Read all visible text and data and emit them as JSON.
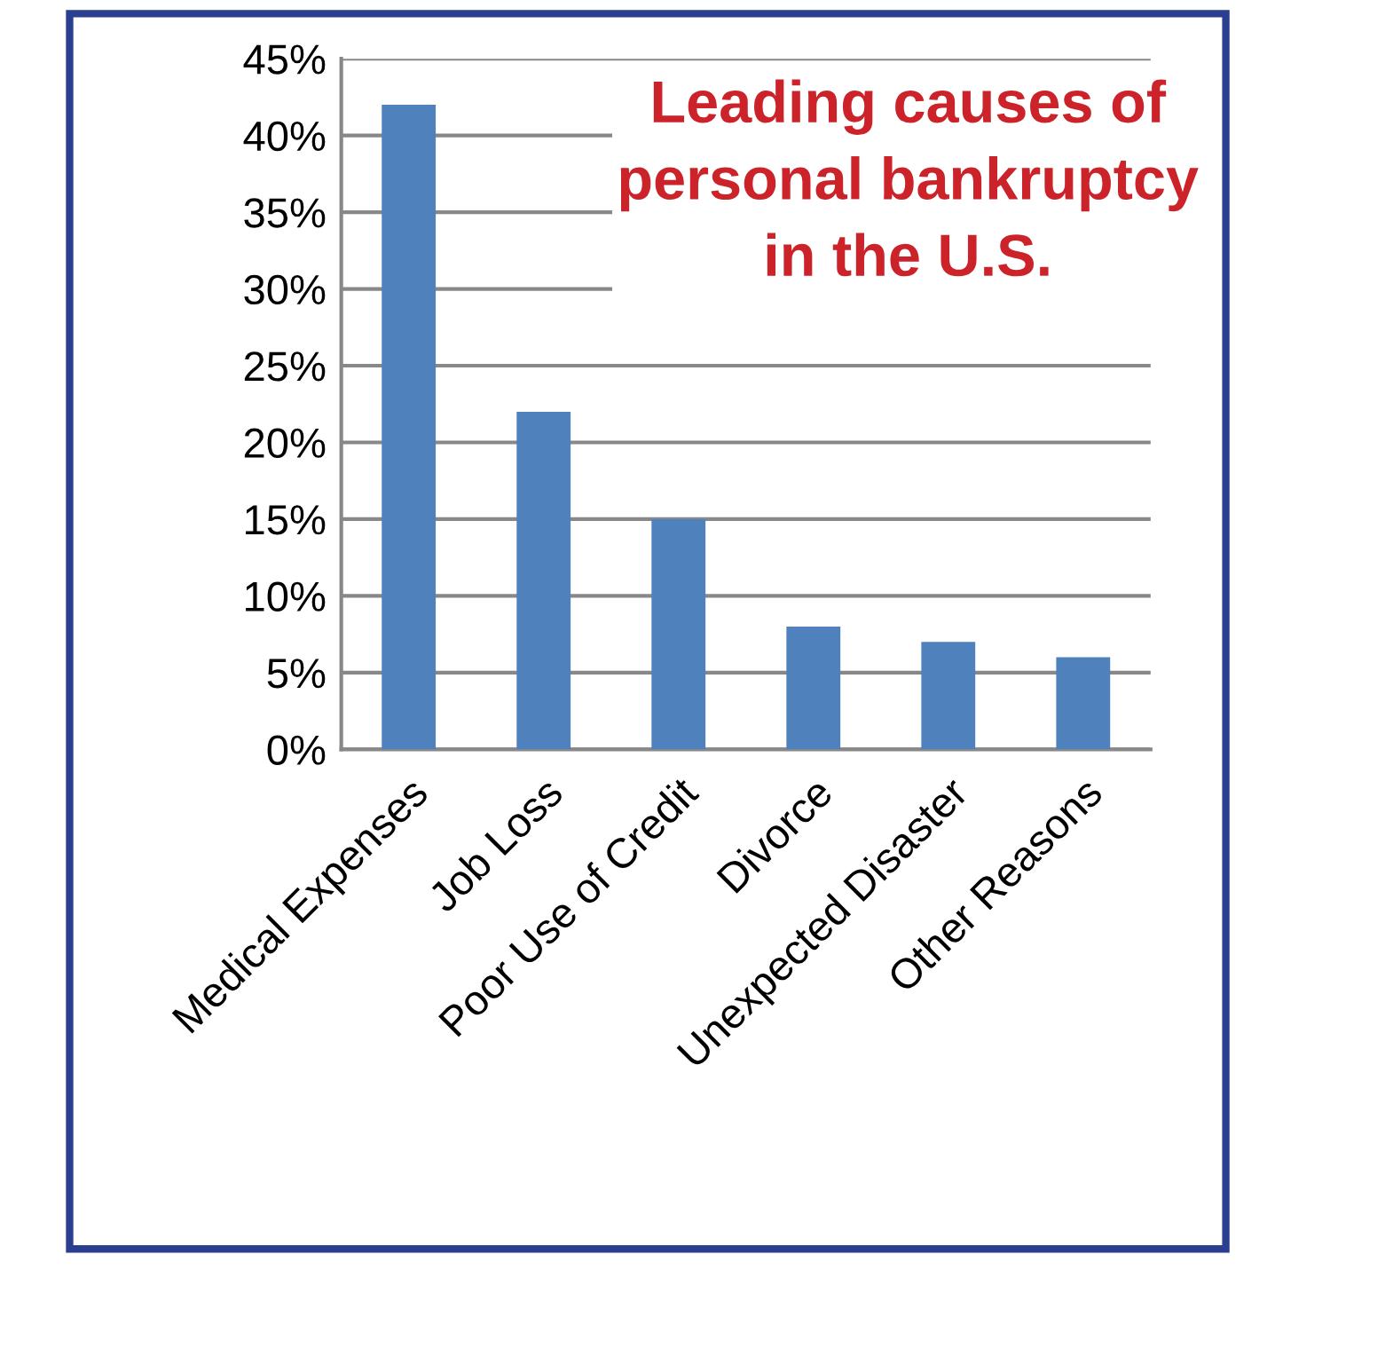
{
  "chart_data": {
    "type": "bar",
    "title": "Leading causes of\npersonal bankruptcy\nin the U.S.",
    "categories": [
      "Medical Expenses",
      "Job Loss",
      "Poor Use of Credit",
      "Divorce",
      "Unexpected Disaster",
      "Other Reasons"
    ],
    "values": [
      42,
      22,
      15,
      8,
      7,
      6
    ],
    "color": "#4f81bd",
    "ylim": [
      0,
      45
    ],
    "yticks": [
      {
        "value": 0,
        "label": "0%"
      },
      {
        "value": 5,
        "label": "5%"
      },
      {
        "value": 10,
        "label": "10%"
      },
      {
        "value": 15,
        "label": "15%"
      },
      {
        "value": 20,
        "label": "20%"
      },
      {
        "value": 25,
        "label": "25%"
      },
      {
        "value": 30,
        "label": "30%"
      },
      {
        "value": 35,
        "label": "35%"
      },
      {
        "value": 40,
        "label": "40%"
      },
      {
        "value": 45,
        "label": "45%"
      }
    ],
    "grid": "y",
    "legend": false
  }
}
